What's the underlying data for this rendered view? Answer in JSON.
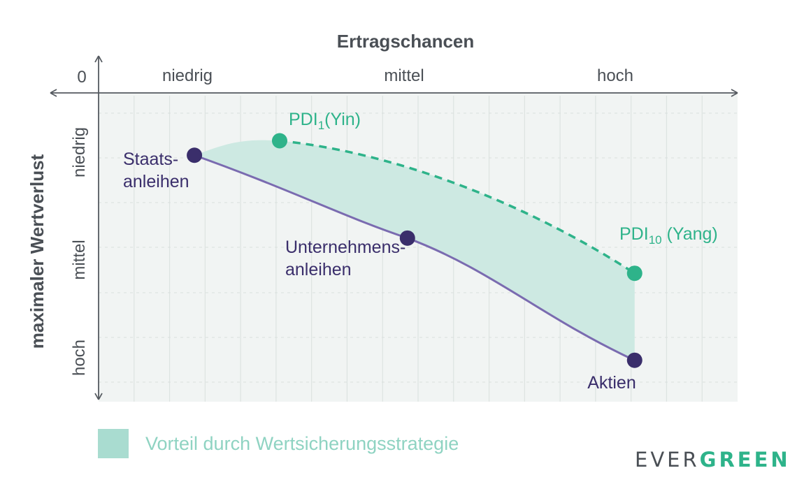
{
  "chart_data": {
    "type": "diagram",
    "x_axis": {
      "title": "Ertragschancen",
      "zero_label": "0",
      "ticks": [
        "niedrig",
        "mittel",
        "hoch"
      ]
    },
    "y_axis": {
      "title": "maximaler Wertverlust",
      "ticks": [
        "niedrig",
        "mittel",
        "hoch"
      ]
    },
    "points": [
      {
        "label_lines": [
          "Staats-",
          "anleihen"
        ],
        "series": "asset",
        "x": 2.7,
        "y": 1.05
      },
      {
        "label_lines": [
          "Unternehmens-",
          "anleihen"
        ],
        "series": "asset",
        "x": 8.7,
        "y": 3.05
      },
      {
        "label_lines": [
          "Aktien"
        ],
        "series": "asset",
        "x": 15.1,
        "y": 6.0
      },
      {
        "label_lines": [
          "PDI",
          "1",
          "(Yin)"
        ],
        "series": "pdi",
        "x": 5.1,
        "y": 0.7
      },
      {
        "label_lines": [
          "PDI",
          "10",
          " (Yang)"
        ],
        "series": "pdi",
        "x": 15.1,
        "y": 3.9
      }
    ],
    "legend": [
      {
        "label": "Vorteil durch Wertsicherungsstrategie",
        "color": "#a9dcd0"
      }
    ],
    "colors": {
      "asset": "#3a2e6b",
      "asset_line": "#7a6bb0",
      "pdi": "#2eb38a",
      "area": "#cde9e2",
      "background": "#f1f4f3"
    }
  },
  "brand": {
    "part1": "EVER",
    "part2": "GREEN"
  }
}
